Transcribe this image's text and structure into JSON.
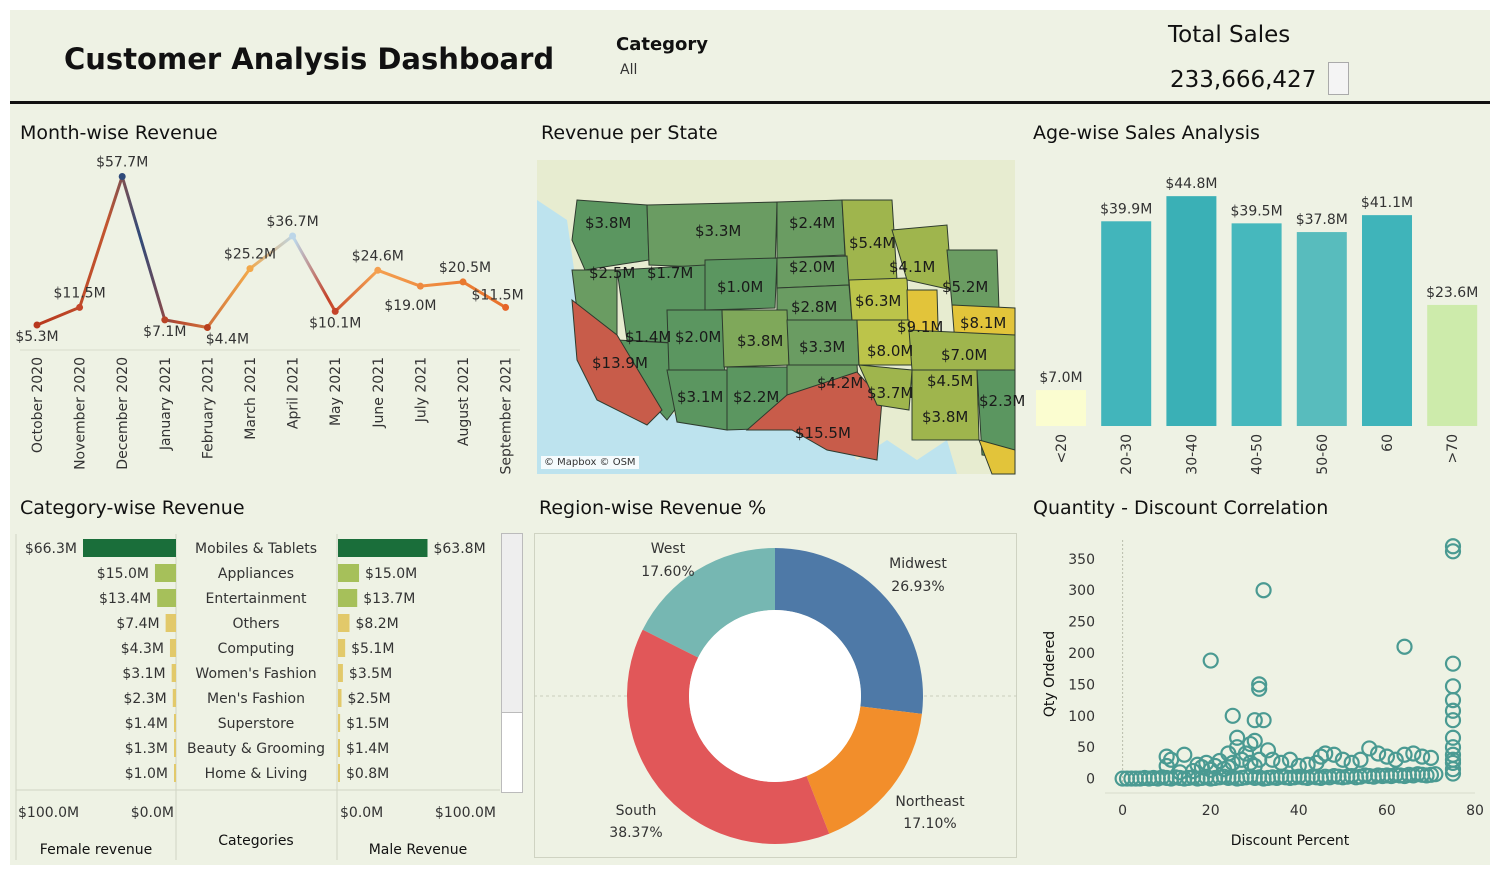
{
  "header": {
    "title": "Customer Analysis Dashboard",
    "category_label": "Category",
    "category_value": "All",
    "total_sales_label": "Total Sales",
    "total_sales_value": "233,666,427"
  },
  "panels": {
    "month": "Month-wise Revenue",
    "state": "Revenue per State",
    "age": "Age-wise Sales Analysis",
    "category": "Category-wise Revenue",
    "region": "Region-wise Revenue %",
    "scatter": "Quantity - Discount Correlation"
  },
  "map": {
    "credit": "© Mapbox © OSM",
    "labels": [
      "$3.8M",
      "$3.3M",
      "$2.4M",
      "$5.4M",
      "$2.5M",
      "$1.7M",
      "$1.0M",
      "$2.0M",
      "$4.1M",
      "$5.2M",
      "$2.8M",
      "$6.3M",
      "$1.4M",
      "$2.0M",
      "$3.8M",
      "$9.1M",
      "$8.1M",
      "$3.3M",
      "$8.0M",
      "$7.0M",
      "$13.9M",
      "$4.2M",
      "$4.5M",
      "$3.7M",
      "$3.1M",
      "$2.2M",
      "$2.3M",
      "$3.8M",
      "$15.5M"
    ]
  },
  "chart_data": [
    {
      "type": "line",
      "title": "Month-wise Revenue",
      "categories": [
        "October 2020",
        "November 2020",
        "December 2020",
        "January 2021",
        "February 2021",
        "March 2021",
        "April 2021",
        "May 2021",
        "June 2021",
        "July 2021",
        "August 2021",
        "September 2021"
      ],
      "values": [
        5.3,
        11.5,
        57.7,
        7.1,
        4.4,
        25.2,
        36.7,
        10.1,
        24.6,
        19.0,
        20.5,
        11.5
      ],
      "labels": [
        "$5.3M",
        "$11.5M",
        "$57.7M",
        "$7.1M",
        "$4.4M",
        "$25.2M",
        "$36.7M",
        "$10.1M",
        "$24.6M",
        "$19.0M",
        "$20.5M",
        "$11.5M"
      ],
      "ylim": [
        0,
        60
      ]
    },
    {
      "type": "bar",
      "title": "Age-wise Sales Analysis",
      "categories": [
        "<20",
        "20-30",
        "30-40",
        "40-50",
        "50-60",
        "60",
        ">70"
      ],
      "values": [
        7.0,
        39.9,
        44.8,
        39.5,
        37.8,
        41.1,
        23.6
      ],
      "labels": [
        "$7.0M",
        "$39.9M",
        "$44.8M",
        "$39.5M",
        "$37.8M",
        "$41.1M",
        "$23.6M"
      ],
      "colors": [
        "#fbfdd0",
        "#42b5bb",
        "#3ab0b6",
        "#46b8bd",
        "#58bcbd",
        "#3fb4ba",
        "#cdebab"
      ],
      "ylim": [
        0,
        46
      ]
    },
    {
      "type": "bar",
      "title": "Category-wise Revenue",
      "categories": [
        "Mobiles & Tablets",
        "Appliances",
        "Entertainment",
        "Others",
        "Computing",
        "Women's Fashion",
        "Men's Fashion",
        "Superstore",
        "Beauty & Grooming",
        "Home & Living"
      ],
      "series": [
        {
          "name": "Female revenue",
          "values": [
            66.3,
            15.0,
            13.4,
            7.4,
            4.3,
            3.1,
            2.3,
            1.4,
            1.3,
            1.0
          ],
          "labels": [
            "$66.3M",
            "$15.0M",
            "$13.4M",
            "$7.4M",
            "$4.3M",
            "$3.1M",
            "$2.3M",
            "$1.4M",
            "$1.3M",
            "$1.0M"
          ]
        },
        {
          "name": "Male Revenue",
          "values": [
            63.8,
            15.0,
            13.7,
            8.2,
            5.1,
            3.5,
            2.5,
            1.5,
            1.4,
            0.8
          ],
          "labels": [
            "$63.8M",
            "$15.0M",
            "$13.7M",
            "$8.2M",
            "$5.1M",
            "$3.5M",
            "$2.5M",
            "$1.5M",
            "$1.4M",
            "$0.8M"
          ]
        }
      ],
      "xlabel": "Categories",
      "female_axis_ticks": [
        "$100.0M",
        "$0.0M"
      ],
      "male_axis_ticks": [
        "$0.0M",
        "$100.0M"
      ]
    },
    {
      "type": "pie",
      "title": "Region-wise Revenue %",
      "categories": [
        "Midwest",
        "Northeast",
        "South",
        "West"
      ],
      "values": [
        26.93,
        17.1,
        38.37,
        17.6
      ],
      "labels": [
        "26.93%",
        "17.10%",
        "38.37%",
        "17.60%"
      ],
      "colors": [
        "#4e79a7",
        "#f28e2b",
        "#e15759",
        "#76b7b2"
      ]
    },
    {
      "type": "scatter",
      "title": "Quantity - Discount Correlation",
      "xlabel": "Discount Percent",
      "ylabel": "Qty Ordered",
      "xlim": [
        -4,
        80
      ],
      "ylim": [
        -15,
        380
      ],
      "xticks": [
        0,
        20,
        40,
        60,
        80
      ],
      "yticks": [
        0,
        50,
        100,
        150,
        200,
        250,
        300,
        350
      ],
      "points": [
        [
          0,
          0
        ],
        [
          1,
          0
        ],
        [
          2,
          0
        ],
        [
          3,
          0
        ],
        [
          4,
          0
        ],
        [
          5,
          1
        ],
        [
          6,
          0
        ],
        [
          7,
          1
        ],
        [
          8,
          0
        ],
        [
          9,
          2
        ],
        [
          10,
          1
        ],
        [
          11,
          0
        ],
        [
          12,
          2
        ],
        [
          13,
          1
        ],
        [
          14,
          0
        ],
        [
          15,
          1
        ],
        [
          16,
          2
        ],
        [
          17,
          0
        ],
        [
          18,
          1
        ],
        [
          19,
          2
        ],
        [
          20,
          0
        ],
        [
          21,
          1
        ],
        [
          22,
          2
        ],
        [
          23,
          3
        ],
        [
          24,
          1
        ],
        [
          25,
          2
        ],
        [
          26,
          0
        ],
        [
          27,
          1
        ],
        [
          28,
          2
        ],
        [
          29,
          3
        ],
        [
          30,
          1
        ],
        [
          31,
          2
        ],
        [
          32,
          0
        ],
        [
          33,
          1
        ],
        [
          34,
          2
        ],
        [
          35,
          1
        ],
        [
          36,
          3
        ],
        [
          37,
          2
        ],
        [
          38,
          1
        ],
        [
          39,
          2
        ],
        [
          40,
          3
        ],
        [
          41,
          2
        ],
        [
          42,
          1
        ],
        [
          43,
          3
        ],
        [
          44,
          2
        ],
        [
          45,
          1
        ],
        [
          46,
          3
        ],
        [
          47,
          2
        ],
        [
          48,
          4
        ],
        [
          49,
          3
        ],
        [
          50,
          2
        ],
        [
          51,
          3
        ],
        [
          52,
          4
        ],
        [
          53,
          2
        ],
        [
          54,
          3
        ],
        [
          55,
          5
        ],
        [
          56,
          4
        ],
        [
          57,
          3
        ],
        [
          58,
          5
        ],
        [
          59,
          4
        ],
        [
          60,
          5
        ],
        [
          61,
          4
        ],
        [
          62,
          6
        ],
        [
          63,
          5
        ],
        [
          64,
          4
        ],
        [
          65,
          6
        ],
        [
          66,
          5
        ],
        [
          67,
          7
        ],
        [
          68,
          6
        ],
        [
          69,
          5
        ],
        [
          70,
          6
        ],
        [
          71,
          7
        ],
        [
          10,
          20
        ],
        [
          10,
          35
        ],
        [
          11,
          30
        ],
        [
          14,
          38
        ],
        [
          13,
          10
        ],
        [
          16,
          12
        ],
        [
          17,
          22
        ],
        [
          18,
          18
        ],
        [
          19,
          25
        ],
        [
          20,
          14
        ],
        [
          21,
          20
        ],
        [
          22,
          28
        ],
        [
          23,
          15
        ],
        [
          24,
          18
        ],
        [
          24,
          40
        ],
        [
          25,
          25
        ],
        [
          26,
          50
        ],
        [
          26,
          65
        ],
        [
          27,
          30
        ],
        [
          28,
          40
        ],
        [
          29,
          25
        ],
        [
          30,
          20
        ],
        [
          29,
          55
        ],
        [
          30,
          60
        ],
        [
          31,
          30
        ],
        [
          31,
          150
        ],
        [
          31,
          143
        ],
        [
          20,
          188
        ],
        [
          25,
          100
        ],
        [
          30,
          93
        ],
        [
          32,
          93
        ],
        [
          32,
          300
        ],
        [
          33,
          45
        ],
        [
          34,
          30
        ],
        [
          36,
          25
        ],
        [
          38,
          30
        ],
        [
          40,
          20
        ],
        [
          42,
          22
        ],
        [
          44,
          25
        ],
        [
          45,
          35
        ],
        [
          46,
          40
        ],
        [
          48,
          38
        ],
        [
          50,
          30
        ],
        [
          52,
          25
        ],
        [
          54,
          30
        ],
        [
          56,
          48
        ],
        [
          58,
          40
        ],
        [
          60,
          35
        ],
        [
          62,
          30
        ],
        [
          64,
          38
        ],
        [
          66,
          40
        ],
        [
          68,
          35
        ],
        [
          70,
          33
        ],
        [
          64,
          210
        ],
        [
          75,
          370
        ],
        [
          75,
          362
        ],
        [
          75,
          183
        ],
        [
          75,
          147
        ],
        [
          75,
          125
        ],
        [
          75,
          108
        ],
        [
          75,
          93
        ],
        [
          75,
          65
        ],
        [
          75,
          50
        ],
        [
          75,
          38
        ],
        [
          75,
          30
        ],
        [
          75,
          25
        ],
        [
          75,
          15
        ],
        [
          75,
          8
        ]
      ]
    }
  ]
}
